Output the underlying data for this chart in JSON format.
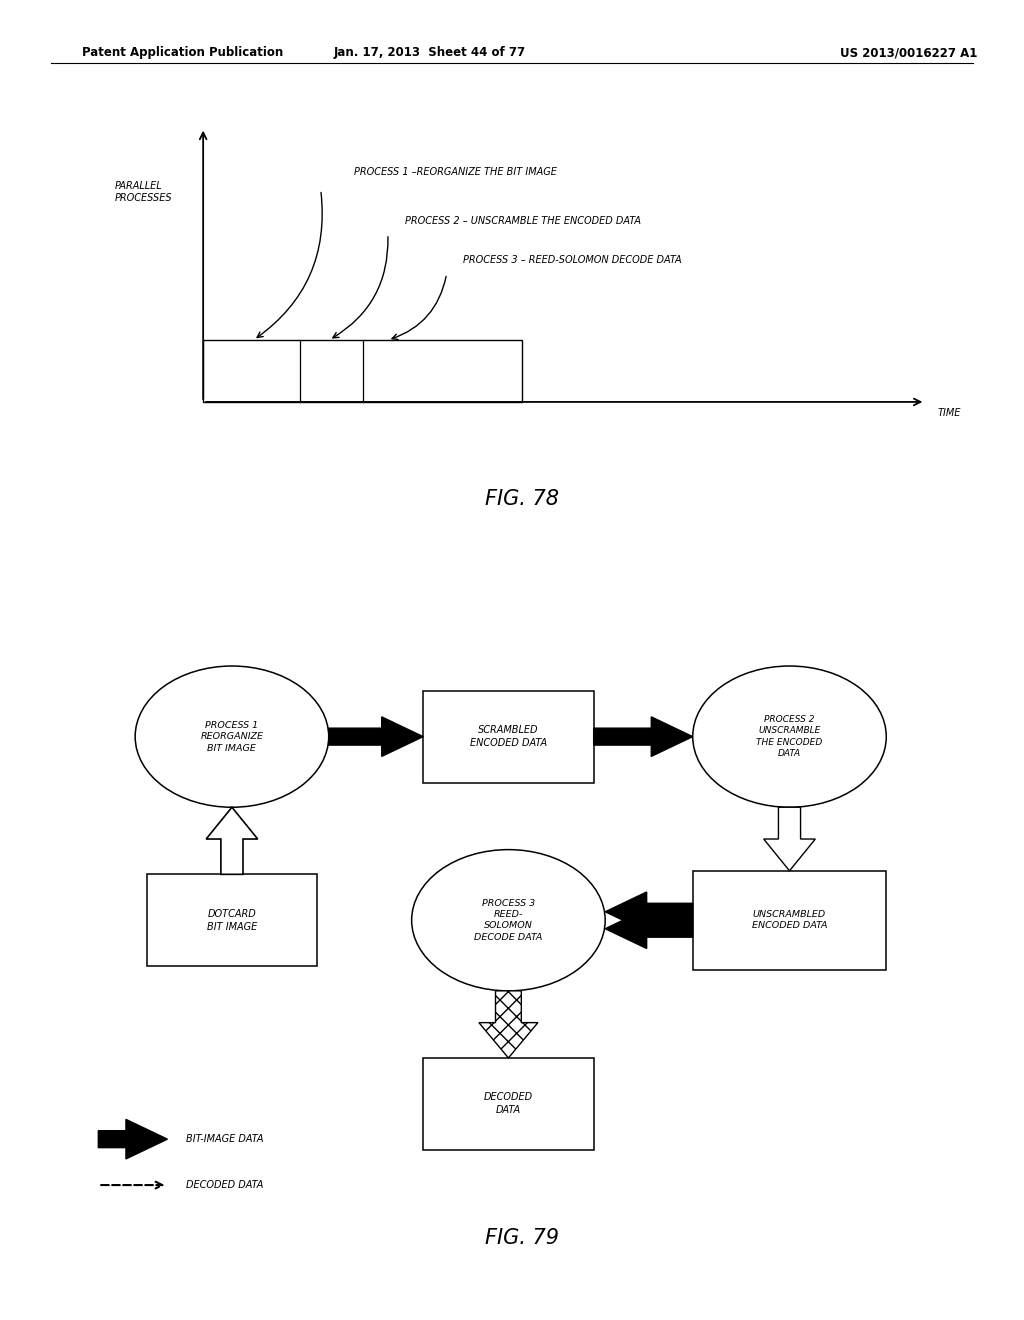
{
  "background_color": "#ffffff",
  "header_left": "Patent Application Publication",
  "header_mid": "Jan. 17, 2013  Sheet 44 of 77",
  "header_right": "US 2013/0016227 A1",
  "fig78_label": "FIG. 78",
  "fig79_label": "FIG. 79",
  "fig78": {
    "ylabel": "PARALLEL\nPROCESSES",
    "xlabel": "TIME",
    "process_labels": [
      "PROCESS 1 –REORGANIZE THE BIT IMAGE",
      "PROCESS 2 – UNSCRAMBLE THE ENCODED DATA",
      "PROCESS 3 – REED-SOLOMON DECODE DATA"
    ]
  },
  "fig79": {
    "legend_solid": "BIT-IMAGE DATA",
    "legend_dashed": "DECODED DATA"
  }
}
